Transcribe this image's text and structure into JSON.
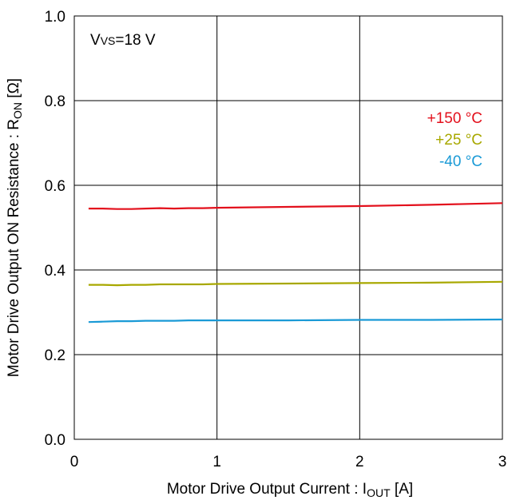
{
  "chart_data": {
    "type": "line",
    "annotation": {
      "main": "V",
      "sub": "VS",
      "rest": "=18 V"
    },
    "xlabel": {
      "main": "Motor Drive Output Current : I",
      "sub": "OUT",
      "rest": " [A]"
    },
    "ylabel": {
      "main": "Motor Drive Output ON Resistance : R",
      "sub": "ON",
      "rest": " [Ω]"
    },
    "xlim": [
      0,
      3
    ],
    "ylim": [
      0,
      1.0
    ],
    "x_ticks": [
      "0",
      "1",
      "2",
      "3"
    ],
    "y_ticks": [
      "0.0",
      "0.2",
      "0.4",
      "0.6",
      "0.8",
      "1.0"
    ],
    "grid": true,
    "legend_position": "top-right",
    "series": [
      {
        "name": "+150 °C",
        "color": "#e3101c",
        "x": [
          0.1,
          0.2,
          0.3,
          0.4,
          0.5,
          0.6,
          0.7,
          0.8,
          0.9,
          1.0,
          1.5,
          2.0,
          2.5,
          3.0
        ],
        "y": [
          0.545,
          0.545,
          0.544,
          0.544,
          0.545,
          0.546,
          0.545,
          0.546,
          0.546,
          0.547,
          0.549,
          0.551,
          0.554,
          0.558
        ]
      },
      {
        "name": "+25 °C",
        "color": "#a8a800",
        "x": [
          0.1,
          0.2,
          0.3,
          0.4,
          0.5,
          0.6,
          0.7,
          0.8,
          0.9,
          1.0,
          1.5,
          2.0,
          2.5,
          3.0
        ],
        "y": [
          0.365,
          0.365,
          0.364,
          0.365,
          0.365,
          0.366,
          0.366,
          0.366,
          0.366,
          0.367,
          0.368,
          0.369,
          0.37,
          0.372
        ]
      },
      {
        "name": "-40 °C",
        "color": "#1a9ad6",
        "x": [
          0.1,
          0.2,
          0.3,
          0.4,
          0.5,
          0.6,
          0.7,
          0.8,
          0.9,
          1.0,
          1.5,
          2.0,
          2.5,
          3.0
        ],
        "y": [
          0.277,
          0.278,
          0.279,
          0.279,
          0.28,
          0.28,
          0.28,
          0.281,
          0.281,
          0.281,
          0.281,
          0.282,
          0.282,
          0.283
        ]
      }
    ]
  }
}
